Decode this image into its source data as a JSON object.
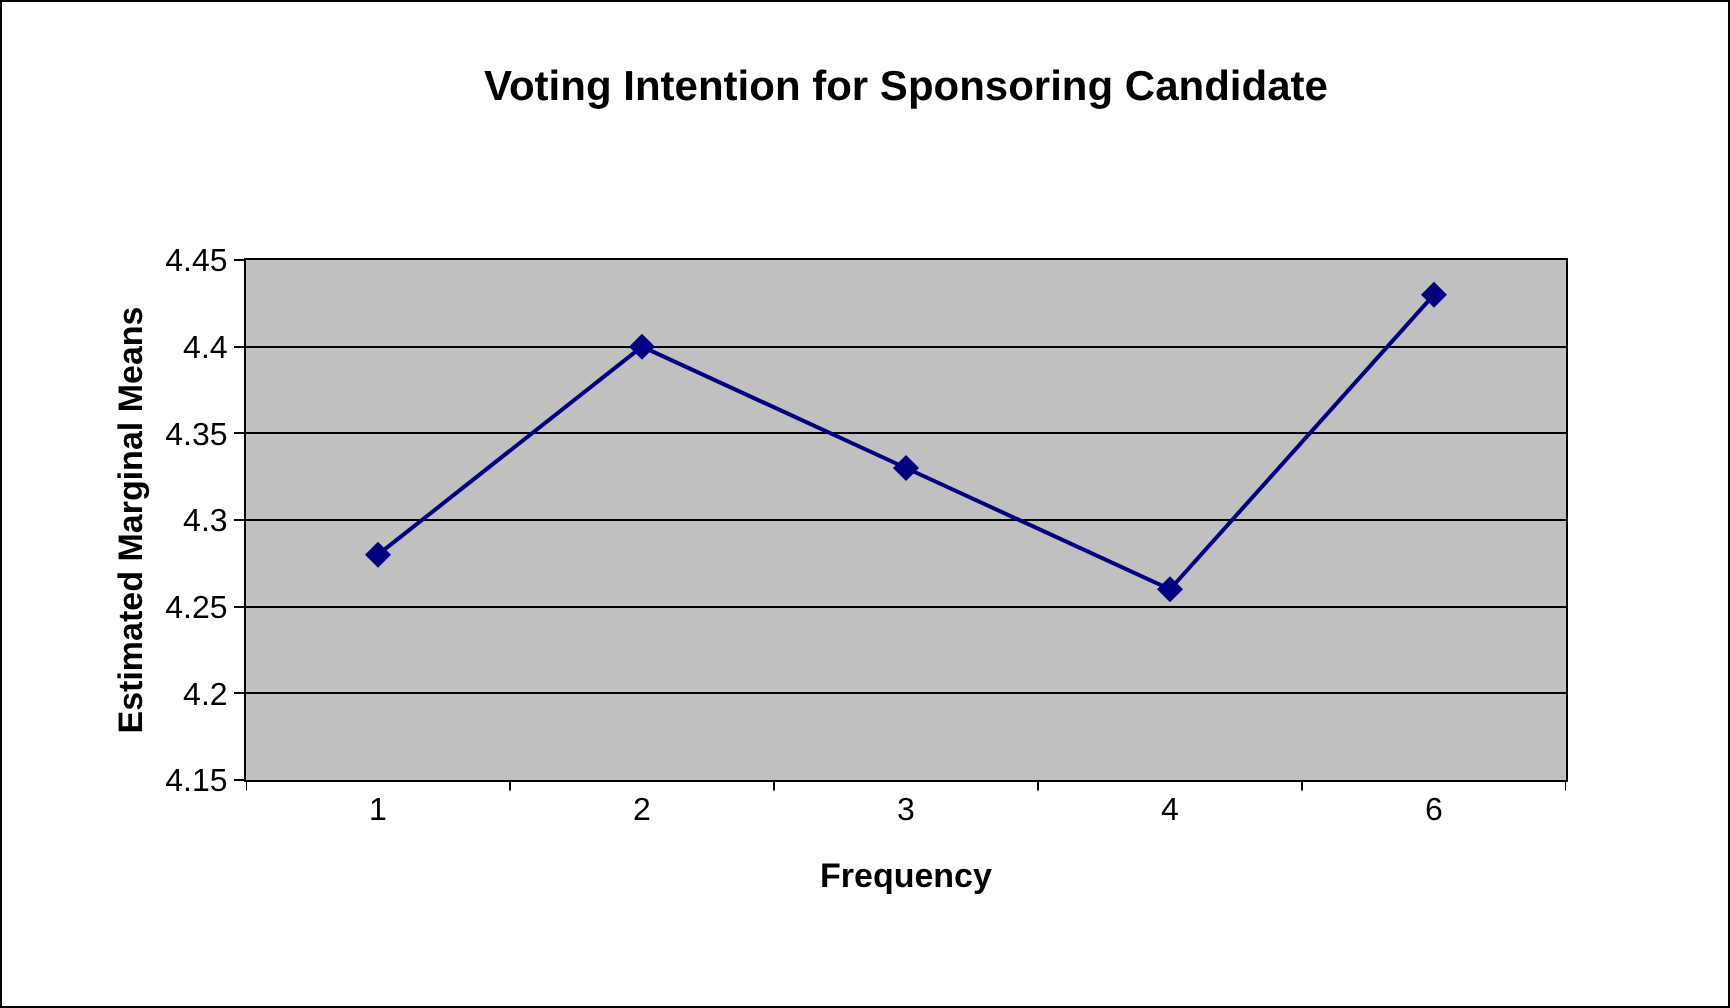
{
  "chart_data": {
    "type": "line",
    "title": "Voting Intention for Sponsoring Candidate",
    "xlabel": "Frequency",
    "ylabel": "Estimated Marginal Means",
    "categories": [
      "1",
      "2",
      "3",
      "4",
      "6"
    ],
    "series": [
      {
        "color": "#000080",
        "values": [
          4.28,
          4.4,
          4.33,
          4.26,
          4.43
        ]
      }
    ],
    "ylim": [
      4.15,
      4.45
    ],
    "yticks": [
      4.15,
      4.2,
      4.25,
      4.3,
      4.35,
      4.4,
      4.45
    ],
    "grid": "y",
    "marker": "diamond",
    "line_style": "solid"
  }
}
